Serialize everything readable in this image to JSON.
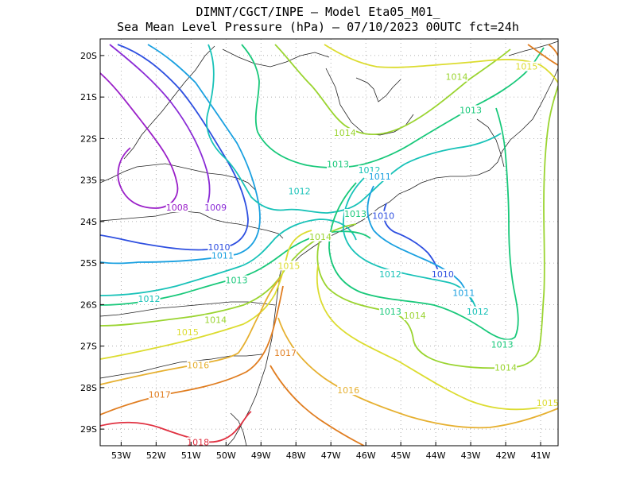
{
  "title": {
    "line1": "DIMNT/CGCT/INPE –  Model Eta05_M01_",
    "line2": "Sea Mean Level Pressure (hPa) – 07/10/2023 00UTC fct=24h"
  },
  "axes": {
    "lon_labels": [
      "53W",
      "52W",
      "51W",
      "50W",
      "49W",
      "48W",
      "47W",
      "46W",
      "45W",
      "44W",
      "43W",
      "42W",
      "41W"
    ],
    "lon_values": [
      -53,
      -52,
      -51,
      -50,
      -49,
      -48,
      -47,
      -46,
      -45,
      -44,
      -43,
      -42,
      -41
    ],
    "lat_labels": [
      "20S",
      "21S",
      "22S",
      "23S",
      "24S",
      "25S",
      "26S",
      "27S",
      "28S",
      "29S"
    ],
    "lat_values": [
      -20,
      -21,
      -22,
      -23,
      -24,
      -25,
      -26,
      -27,
      -28,
      -29
    ],
    "lon_range": [
      -53.6,
      -40.5
    ],
    "lat_range": [
      -29.4,
      -19.6
    ],
    "grid": "dotted"
  },
  "chart_data": {
    "type": "contour",
    "variable": "Sea Mean Level Pressure (hPa)",
    "levels": [
      1008,
      1009,
      1010,
      1011,
      1012,
      1013,
      1014,
      1015,
      1016,
      1017,
      1018
    ],
    "colors": {
      "1008": "#9a1fc8",
      "1009": "#8a2bd6",
      "1010": "#2e4fe0",
      "1011": "#1aa0e0",
      "1012": "#18c2b8",
      "1013": "#18c87a",
      "1014": "#9ad430",
      "1015": "#dcdc30",
      "1016": "#e6b030",
      "1017": "#e07d20",
      "1018": "#e03040"
    },
    "labels": [
      {
        "text": "1008",
        "level": 1008,
        "lon": -51.4,
        "lat": -23.7
      },
      {
        "text": "1009",
        "level": 1009,
        "lon": -50.3,
        "lat": -23.7
      },
      {
        "text": "1010",
        "level": 1010,
        "lon": -50.2,
        "lat": -24.65
      },
      {
        "text": "1011",
        "level": 1011,
        "lon": -50.1,
        "lat": -24.85
      },
      {
        "text": "1013",
        "level": 1013,
        "lon": -49.7,
        "lat": -25.45
      },
      {
        "text": "1012",
        "level": 1012,
        "lon": -52.2,
        "lat": -25.9
      },
      {
        "text": "1014",
        "level": 1014,
        "lon": -50.3,
        "lat": -26.4
      },
      {
        "text": "1015",
        "level": 1015,
        "lon": -51.1,
        "lat": -26.7
      },
      {
        "text": "1016",
        "level": 1016,
        "lon": -50.8,
        "lat": -27.5
      },
      {
        "text": "1017",
        "level": 1017,
        "lon": -51.9,
        "lat": -28.2
      },
      {
        "text": "1018",
        "level": 1018,
        "lon": -50.8,
        "lat": -29.35
      },
      {
        "text": "1017",
        "level": 1017,
        "lon": -48.3,
        "lat": -27.2
      },
      {
        "text": "1016",
        "level": 1016,
        "lon": -46.5,
        "lat": -28.1
      },
      {
        "text": "1015",
        "level": 1015,
        "lon": -48.2,
        "lat": -25.1
      },
      {
        "text": "1014",
        "level": 1014,
        "lon": -47.3,
        "lat": -24.4
      },
      {
        "text": "1013",
        "level": 1013,
        "lon": -46.3,
        "lat": -23.85
      },
      {
        "text": "1012",
        "level": 1012,
        "lon": -47.9,
        "lat": -23.3
      },
      {
        "text": "1013",
        "level": 1013,
        "lon": -46.8,
        "lat": -22.65
      },
      {
        "text": "1012",
        "level": 1012,
        "lon": -45.9,
        "lat": -22.8
      },
      {
        "text": "1011",
        "level": 1011,
        "lon": -45.6,
        "lat": -22.95
      },
      {
        "text": "1010",
        "level": 1010,
        "lon": -45.5,
        "lat": -23.9
      },
      {
        "text": "1014",
        "level": 1014,
        "lon": -46.6,
        "lat": -21.9
      },
      {
        "text": "1014",
        "level": 1014,
        "lon": -43.4,
        "lat": -20.55
      },
      {
        "text": "1015",
        "level": 1015,
        "lon": -41.4,
        "lat": -20.3
      },
      {
        "text": "1013",
        "level": 1013,
        "lon": -43.0,
        "lat": -21.35
      },
      {
        "text": "1012",
        "level": 1012,
        "lon": -45.3,
        "lat": -25.3
      },
      {
        "text": "1010",
        "level": 1010,
        "lon": -43.8,
        "lat": -25.3
      },
      {
        "text": "1011",
        "level": 1011,
        "lon": -43.2,
        "lat": -25.75
      },
      {
        "text": "1013",
        "level": 1013,
        "lon": -45.3,
        "lat": -26.2
      },
      {
        "text": "1014",
        "level": 1014,
        "lon": -44.6,
        "lat": -26.3
      },
      {
        "text": "1012",
        "level": 1012,
        "lon": -42.8,
        "lat": -26.2
      },
      {
        "text": "1013",
        "level": 1013,
        "lon": -42.1,
        "lat": -27.0
      },
      {
        "text": "1014",
        "level": 1014,
        "lon": -42.0,
        "lat": -27.55
      },
      {
        "text": "1015",
        "level": 1015,
        "lon": -40.8,
        "lat": -28.4
      }
    ]
  }
}
